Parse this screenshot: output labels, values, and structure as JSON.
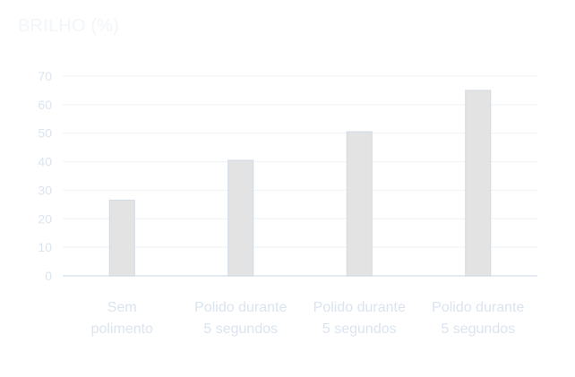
{
  "chart_data": {
    "type": "bar",
    "title": "BRILHO (%)",
    "categories": [
      [
        "Sem",
        "polimento"
      ],
      [
        "Polido durante",
        "5 segundos"
      ],
      [
        "Polido durante",
        "5 segundos"
      ],
      [
        "Polido durante",
        "5 segundos"
      ]
    ],
    "values": [
      26.5,
      40.5,
      50.5,
      65
    ],
    "ylim": [
      0,
      70
    ],
    "yticks": [
      "0",
      "10",
      "20",
      "30",
      "40",
      "50",
      "60",
      "70"
    ],
    "grid": true,
    "colors": {
      "bar_fill": "#e3e3e3",
      "bar_edge": "#cfd9e4",
      "grid": "#eef2f6",
      "axis": "#dbe4ee"
    }
  }
}
